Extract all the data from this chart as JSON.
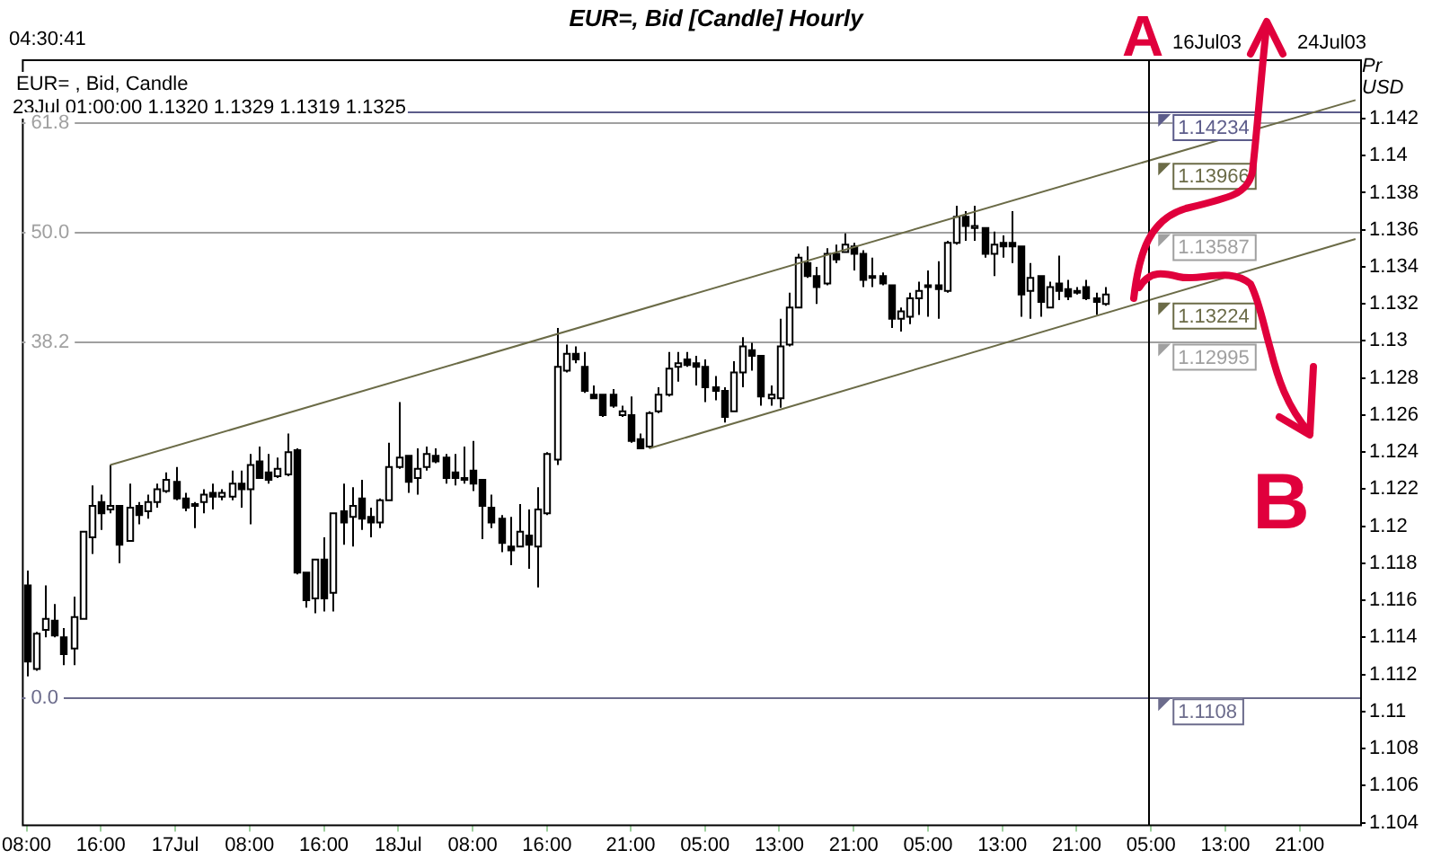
{
  "chart_data": {
    "type": "candlestick",
    "title": "EUR=, Bid [Candle] Hourly",
    "ylabel": "Pr USD",
    "categories": [
      "08:00",
      null,
      null,
      null,
      null,
      null,
      null,
      null,
      "16:00",
      null,
      null,
      null,
      null,
      null,
      null,
      null,
      "17Jul",
      null,
      null,
      null,
      null,
      null,
      null,
      null,
      "08:00",
      null,
      null,
      null,
      null,
      null,
      null,
      null,
      "16:00",
      null,
      null,
      null,
      null,
      null,
      null,
      null,
      "18Jul",
      null,
      null,
      null,
      null,
      null,
      null,
      null,
      "08:00",
      null,
      null,
      null,
      null,
      null,
      null,
      null,
      "16:00",
      null,
      null,
      null,
      null,
      null,
      null,
      null,
      null,
      "21:00",
      null,
      null,
      null,
      null,
      null,
      null,
      null,
      "05:00",
      null,
      null,
      null,
      null,
      null,
      null,
      null,
      "13:00",
      null,
      null,
      null,
      null,
      null,
      null,
      null,
      "21:00",
      null,
      null,
      null,
      null,
      null,
      null,
      null,
      "05:00",
      null,
      null,
      null,
      null,
      null,
      null,
      null,
      "13:00",
      null,
      null,
      null,
      null,
      null,
      null,
      null,
      "21:00",
      null,
      null,
      null,
      null,
      null,
      null,
      null,
      "05:00",
      null,
      null,
      null,
      null,
      null,
      null,
      null,
      "13:00",
      null,
      null,
      null,
      null,
      null,
      null,
      null,
      "21:00",
      null,
      null,
      null,
      null,
      null,
      null
    ],
    "ohlc": [
      [
        1.1168,
        1.1176,
        1.1119,
        1.1127
      ],
      [
        1.1123,
        1.1143,
        1.1122,
        1.1142
      ],
      [
        1.1144,
        1.1168,
        1.114,
        1.115
      ],
      [
        1.1149,
        1.1158,
        1.114,
        1.1141
      ],
      [
        1.114,
        1.1145,
        1.1125,
        1.1131
      ],
      [
        1.1134,
        1.1162,
        1.1125,
        1.1151
      ],
      [
        1.115,
        1.1197,
        1.115,
        1.1197
      ],
      [
        1.1194,
        1.1222,
        1.1185,
        1.1211
      ],
      [
        1.1213,
        1.1217,
        1.1198,
        1.1207
      ],
      [
        1.1209,
        1.1233,
        1.1207,
        1.1211
      ],
      [
        1.1211,
        1.1211,
        1.118,
        1.119
      ],
      [
        1.1192,
        1.1223,
        1.1192,
        1.121
      ],
      [
        1.1211,
        1.1213,
        1.1201,
        1.1206
      ],
      [
        1.1208,
        1.1217,
        1.1204,
        1.1213
      ],
      [
        1.1213,
        1.1223,
        1.121,
        1.122
      ],
      [
        1.1219,
        1.1229,
        1.1218,
        1.1225
      ],
      [
        1.1224,
        1.1232,
        1.1214,
        1.1215
      ],
      [
        1.1215,
        1.1218,
        1.1208,
        1.121
      ],
      [
        1.1212,
        1.1213,
        1.1199,
        1.1211
      ],
      [
        1.1213,
        1.122,
        1.1207,
        1.1217
      ],
      [
        1.1218,
        1.1223,
        1.1209,
        1.1216
      ],
      [
        1.1216,
        1.122,
        1.1214,
        1.1218
      ],
      [
        1.1216,
        1.123,
        1.1214,
        1.1223
      ],
      [
        1.1223,
        1.123,
        1.121,
        1.122
      ],
      [
        1.122,
        1.1239,
        1.1201,
        1.1233
      ],
      [
        1.1235,
        1.1243,
        1.1226,
        1.1226
      ],
      [
        1.1229,
        1.1239,
        1.1223,
        1.1225
      ],
      [
        1.1227,
        1.1237,
        1.1226,
        1.1231
      ],
      [
        1.1228,
        1.125,
        1.1227,
        1.124
      ],
      [
        1.1241,
        1.1242,
        1.1174,
        1.1175
      ],
      [
        1.1175,
        1.1175,
        1.1156,
        1.116
      ],
      [
        1.1161,
        1.1182,
        1.1153,
        1.1182
      ],
      [
        1.1182,
        1.1194,
        1.1154,
        1.1161
      ],
      [
        1.1164,
        1.1207,
        1.1154,
        1.1207
      ],
      [
        1.1208,
        1.1223,
        1.119,
        1.1202
      ],
      [
        1.1205,
        1.1221,
        1.1189,
        1.1211
      ],
      [
        1.1215,
        1.1225,
        1.1198,
        1.1204
      ],
      [
        1.1205,
        1.121,
        1.1194,
        1.1202
      ],
      [
        1.1202,
        1.1215,
        1.1199,
        1.1214
      ],
      [
        1.1214,
        1.1245,
        1.1214,
        1.1232
      ],
      [
        1.1232,
        1.1267,
        1.1231,
        1.1237
      ],
      [
        1.1238,
        1.1238,
        1.1218,
        1.1224
      ],
      [
        1.1226,
        1.1242,
        1.1217,
        1.1231
      ],
      [
        1.1232,
        1.1243,
        1.123,
        1.1239
      ],
      [
        1.1238,
        1.1242,
        1.1234,
        1.1235
      ],
      [
        1.1237,
        1.1239,
        1.1223,
        1.1226
      ],
      [
        1.1229,
        1.1239,
        1.1222,
        1.1226
      ],
      [
        1.1226,
        1.1243,
        1.1223,
        1.1225
      ],
      [
        1.123,
        1.1246,
        1.1219,
        1.1223
      ],
      [
        1.1225,
        1.1225,
        1.1193,
        1.1211
      ],
      [
        1.121,
        1.1217,
        1.1199,
        1.1202
      ],
      [
        1.1204,
        1.1206,
        1.1186,
        1.1191
      ],
      [
        1.1189,
        1.1205,
        1.1179,
        1.1187
      ],
      [
        1.1189,
        1.1212,
        1.1189,
        1.1197
      ],
      [
        1.1195,
        1.1209,
        1.1177,
        1.119
      ],
      [
        1.1189,
        1.1221,
        1.1167,
        1.1209
      ],
      [
        1.1207,
        1.124,
        1.1206,
        1.1239
      ],
      [
        1.1236,
        1.1307,
        1.1233,
        1.1286
      ],
      [
        1.1284,
        1.1298,
        1.1283,
        1.1293
      ],
      [
        1.1293,
        1.1297,
        1.1288,
        1.129
      ],
      [
        1.1286,
        1.1294,
        1.1272,
        1.1273
      ],
      [
        1.1271,
        1.1276,
        1.1269,
        1.1269
      ],
      [
        1.1271,
        1.1271,
        1.1259,
        1.126
      ],
      [
        1.1271,
        1.1274,
        1.1264,
        1.1265
      ],
      [
        1.126,
        1.1265,
        1.1259,
        1.1262
      ],
      [
        1.126,
        1.127,
        1.1245,
        1.1246
      ],
      [
        1.1247,
        1.125,
        1.1242,
        1.1242
      ],
      [
        1.1243,
        1.1262,
        1.1242,
        1.1261
      ],
      [
        1.1262,
        1.1275,
        1.1261,
        1.1271
      ],
      [
        1.1271,
        1.1294,
        1.127,
        1.1285
      ],
      [
        1.1286,
        1.1294,
        1.1278,
        1.1288
      ],
      [
        1.129,
        1.1294,
        1.1286,
        1.1287
      ],
      [
        1.1288,
        1.1292,
        1.1276,
        1.1286
      ],
      [
        1.1286,
        1.129,
        1.1267,
        1.1275
      ],
      [
        1.1275,
        1.1281,
        1.1268,
        1.1273
      ],
      [
        1.1273,
        1.1275,
        1.1256,
        1.1259
      ],
      [
        1.1262,
        1.1289,
        1.1262,
        1.1283
      ],
      [
        1.1283,
        1.1302,
        1.1275,
        1.1297
      ],
      [
        1.1295,
        1.1299,
        1.1284,
        1.1292
      ],
      [
        1.1292,
        1.1292,
        1.1265,
        1.127
      ],
      [
        1.1269,
        1.1276,
        1.1265,
        1.1271
      ],
      [
        1.1269,
        1.1312,
        1.1264,
        1.1297
      ],
      [
        1.1298,
        1.1326,
        1.1297,
        1.1318
      ],
      [
        1.1318,
        1.1347,
        1.1318,
        1.1345
      ],
      [
        1.1342,
        1.1351,
        1.1334,
        1.1335
      ],
      [
        1.1335,
        1.134,
        1.132,
        1.1329
      ],
      [
        1.1331,
        1.135,
        1.133,
        1.1347
      ],
      [
        1.1347,
        1.1352,
        1.1342,
        1.1344
      ],
      [
        1.1348,
        1.1358,
        1.1348,
        1.1352
      ],
      [
        1.1351,
        1.1353,
        1.1338,
        1.1347
      ],
      [
        1.1347,
        1.1349,
        1.1329,
        1.1333
      ],
      [
        1.1335,
        1.1345,
        1.1329,
        1.1334
      ],
      [
        1.1335,
        1.1337,
        1.133,
        1.1331
      ],
      [
        1.133,
        1.133,
        1.1307,
        1.1312
      ],
      [
        1.1312,
        1.1318,
        1.1305,
        1.1316
      ],
      [
        1.1313,
        1.1326,
        1.1309,
        1.1323
      ],
      [
        1.1323,
        1.1332,
        1.1314,
        1.1327
      ],
      [
        1.133,
        1.1338,
        1.1313,
        1.1329
      ],
      [
        1.133,
        1.1343,
        1.1312,
        1.1328
      ],
      [
        1.1327,
        1.1354,
        1.1326,
        1.1353
      ],
      [
        1.1353,
        1.1373,
        1.1352,
        1.1367
      ],
      [
        1.1367,
        1.137,
        1.1354,
        1.1362
      ],
      [
        1.1361,
        1.1373,
        1.1354,
        1.1362
      ],
      [
        1.1361,
        1.1361,
        1.1345,
        1.1347
      ],
      [
        1.1347,
        1.1359,
        1.1335,
        1.1352
      ],
      [
        1.1353,
        1.1357,
        1.1345,
        1.1351
      ],
      [
        1.1353,
        1.137,
        1.1342,
        1.1351
      ],
      [
        1.1351,
        1.1351,
        1.1313,
        1.1325
      ],
      [
        1.1327,
        1.1342,
        1.1312,
        1.1334
      ],
      [
        1.1335,
        1.1335,
        1.1313,
        1.1321
      ],
      [
        1.1318,
        1.1332,
        1.1318,
        1.1329
      ],
      [
        1.1331,
        1.1346,
        1.1322,
        1.1327
      ],
      [
        1.1328,
        1.1333,
        1.1322,
        1.1324
      ],
      [
        1.1326,
        1.1329,
        1.1325,
        1.1327
      ],
      [
        1.1329,
        1.1333,
        1.1322,
        1.1323
      ],
      [
        1.1323,
        1.1326,
        1.1314,
        1.1321
      ],
      [
        1.132,
        1.1329,
        1.1319,
        1.1325
      ],
      null,
      null,
      null,
      null,
      null,
      null,
      null,
      null,
      null,
      null,
      null,
      null,
      null,
      null,
      null,
      null,
      null,
      null,
      null,
      null,
      null,
      null,
      null,
      null,
      null,
      null,
      null
    ],
    "series": [
      {
        "type": "line",
        "color": "#6b6b47",
        "values": [
          null,
          null,
          null,
          null,
          null,
          null,
          null,
          null,
          null,
          1.1233,
          null,
          null,
          null,
          null,
          null,
          null,
          null,
          null,
          null,
          null,
          null,
          null,
          null,
          null,
          null,
          null,
          null,
          null,
          null,
          null,
          null,
          null,
          null,
          null,
          null,
          null,
          null,
          null,
          null,
          null,
          null,
          null,
          null,
          null,
          null,
          null,
          null,
          null,
          null,
          null,
          null,
          null,
          null,
          null,
          null,
          null,
          null,
          null,
          null,
          null,
          null,
          null,
          null,
          null,
          null,
          null,
          null,
          null,
          null,
          null,
          null,
          null,
          null,
          null,
          null,
          null,
          null,
          null,
          null,
          null,
          null,
          null,
          null,
          null,
          null,
          null,
          null,
          null,
          null,
          null,
          null,
          null,
          null,
          null,
          null,
          null,
          null,
          null,
          null,
          null,
          null,
          null,
          null,
          null,
          null,
          null,
          null,
          null,
          null,
          null,
          null,
          null,
          null,
          null,
          null,
          null,
          null,
          null,
          null,
          null,
          null,
          null,
          null,
          null,
          null,
          null,
          null,
          null,
          null,
          null,
          null,
          null,
          null,
          null,
          null,
          null,
          null,
          null,
          null,
          null,
          null,
          null,
          null,
          1.143
        ]
      },
      {
        "type": "line",
        "color": "#6b6b47",
        "values": [
          null,
          null,
          null,
          null,
          null,
          null,
          null,
          null,
          null,
          null,
          null,
          null,
          null,
          null,
          null,
          null,
          null,
          null,
          null,
          null,
          null,
          null,
          null,
          null,
          null,
          null,
          null,
          null,
          null,
          null,
          null,
          null,
          null,
          null,
          null,
          null,
          null,
          null,
          null,
          null,
          null,
          null,
          null,
          null,
          null,
          null,
          null,
          null,
          null,
          null,
          null,
          null,
          null,
          null,
          null,
          null,
          null,
          null,
          null,
          null,
          null,
          null,
          null,
          null,
          null,
          null,
          null,
          1.1242,
          null,
          null,
          null,
          null,
          null,
          null,
          null,
          null,
          null,
          null,
          null,
          null,
          null,
          null,
          null,
          null,
          null,
          null,
          null,
          null,
          null,
          null,
          null,
          null,
          null,
          null,
          null,
          null,
          null,
          null,
          null,
          null,
          null,
          null,
          null,
          null,
          null,
          null,
          null,
          null,
          null,
          null,
          null,
          null,
          null,
          null,
          null,
          null,
          null,
          null,
          null,
          null,
          null,
          null,
          null,
          null,
          null,
          null,
          null,
          null,
          null,
          null,
          null,
          null,
          null,
          null,
          null,
          null,
          null,
          null,
          null,
          null,
          null,
          null,
          null,
          1.1355
        ]
      }
    ],
    "ylim": [
      1.1039,
      1.1452
    ],
    "yticks": [
      1.104,
      1.106,
      1.108,
      1.11,
      1.112,
      1.114,
      1.116,
      1.118,
      1.12,
      1.122,
      1.124,
      1.126,
      1.128,
      1.13,
      1.132,
      1.134,
      1.136,
      1.138,
      1.14,
      1.142
    ],
    "ref_lines": [
      {
        "axis": "y",
        "value": 1.14234,
        "label": "1.14234",
        "color": "#5c5c8a"
      },
      {
        "axis": "y",
        "value": 1.14179,
        "label": null,
        "color": "#a0a0a0"
      },
      {
        "axis": "y",
        "value": 1.13587,
        "label": "1.13587",
        "color": "#a0a0a0"
      },
      {
        "axis": "y",
        "value": 1.12995,
        "label": "1.12995",
        "color": "#a0a0a0"
      },
      {
        "axis": "y",
        "value": 1.1108,
        "label": "1.1108",
        "color": "#6c6c8c"
      }
    ],
    "annotations": [
      "04:30:41",
      "EUR= , Bid, Candle",
      "23Jul 01:00:00 1.1320 1.1329 1.1319 1.1325",
      "16Jul03",
      "24Jul03",
      "A",
      "B",
      "1.13966",
      "1.13224",
      {
        "text": "61.8",
        "y": 1.14179
      },
      {
        "text": "50.0",
        "y": 1.13587
      },
      {
        "text": "38.2",
        "y": 1.12995
      },
      {
        "text": "0.0",
        "y": 1.1108
      }
    ]
  }
}
